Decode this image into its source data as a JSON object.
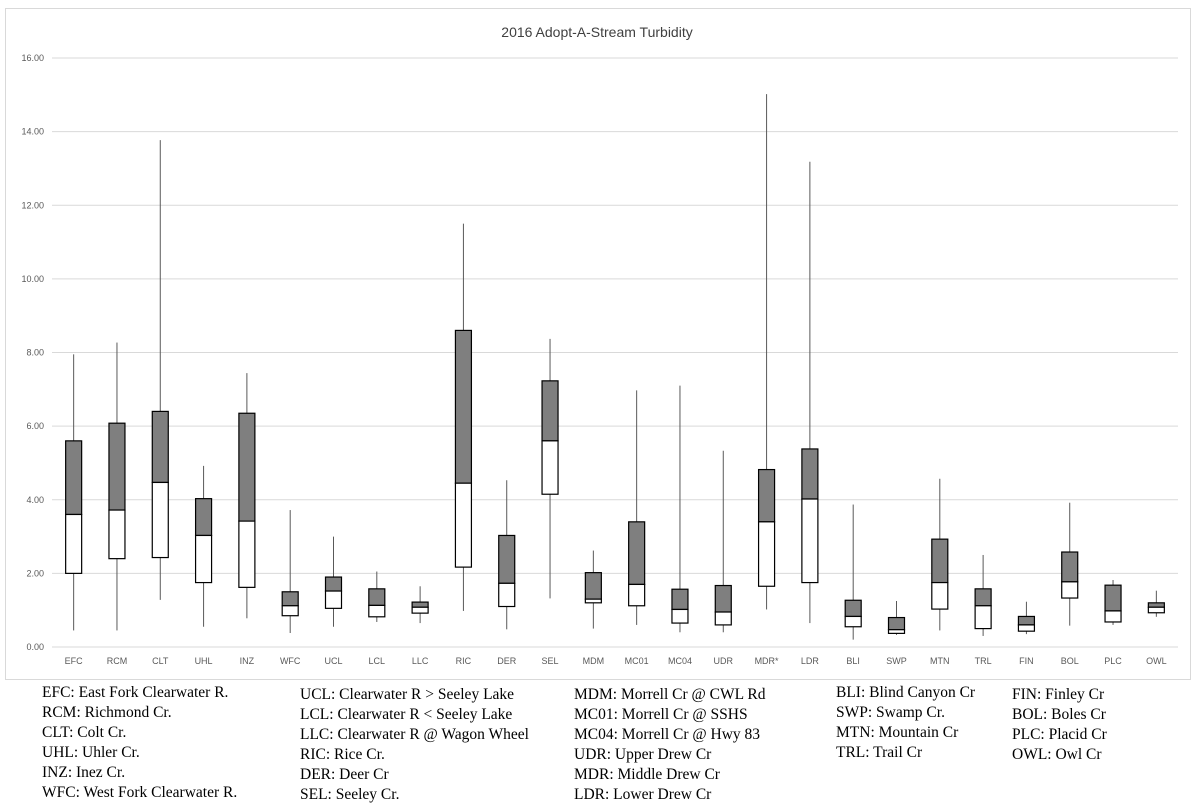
{
  "chart_data": {
    "type": "boxplot",
    "title": "2016 Adopt-A-Stream Turbidity",
    "xlabel": "",
    "ylabel": "",
    "ylim": [
      0,
      16
    ],
    "yticks": [
      "0.00",
      "2.00",
      "4.00",
      "6.00",
      "8.00",
      "10.00",
      "12.00",
      "14.00",
      "16.00"
    ],
    "grid": true,
    "colors": {
      "upper_box": "#7f7f7f",
      "lower_box": "#ffffff",
      "stroke": "#000000",
      "whisker": "#595959",
      "grid": "#d9d9d9"
    },
    "categories": [
      "EFC",
      "RCM",
      "CLT",
      "UHL",
      "INZ",
      "WFC",
      "UCL",
      "LCL",
      "LLC",
      "RIC",
      "DER",
      "SEL",
      "MDM",
      "MC01",
      "MC04",
      "UDR",
      "MDR*",
      "LDR",
      "BLI",
      "SWP",
      "MTN",
      "TRL",
      "FIN",
      "BOL",
      "PLC",
      "OWL"
    ],
    "boxes": [
      {
        "min": 0.45,
        "q1": 2.0,
        "median": 3.6,
        "q3": 5.6,
        "max": 7.95
      },
      {
        "min": 0.45,
        "q1": 2.4,
        "median": 3.72,
        "q3": 6.08,
        "max": 8.27
      },
      {
        "min": 1.28,
        "q1": 2.43,
        "median": 4.47,
        "q3": 6.4,
        "max": 13.77
      },
      {
        "min": 0.55,
        "q1": 1.75,
        "median": 3.03,
        "q3": 4.03,
        "max": 4.92
      },
      {
        "min": 0.78,
        "q1": 1.62,
        "median": 3.42,
        "q3": 6.35,
        "max": 7.44
      },
      {
        "min": 0.38,
        "q1": 0.85,
        "median": 1.12,
        "q3": 1.5,
        "max": 3.72
      },
      {
        "min": 0.55,
        "q1": 1.05,
        "median": 1.52,
        "q3": 1.9,
        "max": 3.0
      },
      {
        "min": 0.68,
        "q1": 0.82,
        "median": 1.13,
        "q3": 1.58,
        "max": 2.05
      },
      {
        "min": 0.65,
        "q1": 0.92,
        "median": 1.08,
        "q3": 1.22,
        "max": 1.65
      },
      {
        "min": 0.98,
        "q1": 2.17,
        "median": 4.45,
        "q3": 8.6,
        "max": 11.5
      },
      {
        "min": 0.48,
        "q1": 1.1,
        "median": 1.73,
        "q3": 3.03,
        "max": 4.53
      },
      {
        "min": 1.32,
        "q1": 4.15,
        "median": 5.6,
        "q3": 7.23,
        "max": 8.37
      },
      {
        "min": 0.5,
        "q1": 1.2,
        "median": 1.3,
        "q3": 2.02,
        "max": 2.62
      },
      {
        "min": 0.6,
        "q1": 1.12,
        "median": 1.7,
        "q3": 3.4,
        "max": 6.97
      },
      {
        "min": 0.4,
        "q1": 0.65,
        "median": 1.02,
        "q3": 1.57,
        "max": 7.1
      },
      {
        "min": 0.4,
        "q1": 0.6,
        "median": 0.95,
        "q3": 1.67,
        "max": 5.33
      },
      {
        "min": 1.02,
        "q1": 1.65,
        "median": 3.4,
        "q3": 4.82,
        "max": 15.02
      },
      {
        "min": 0.65,
        "q1": 1.75,
        "median": 4.02,
        "q3": 5.38,
        "max": 13.18
      },
      {
        "min": 0.2,
        "q1": 0.55,
        "median": 0.83,
        "q3": 1.27,
        "max": 3.87
      },
      {
        "min": 0.33,
        "q1": 0.37,
        "median": 0.47,
        "q3": 0.8,
        "max": 1.25
      },
      {
        "min": 0.45,
        "q1": 1.03,
        "median": 1.75,
        "q3": 2.93,
        "max": 4.57
      },
      {
        "min": 0.3,
        "q1": 0.5,
        "median": 1.12,
        "q3": 1.58,
        "max": 2.5
      },
      {
        "min": 0.35,
        "q1": 0.43,
        "median": 0.6,
        "q3": 0.83,
        "max": 1.23
      },
      {
        "min": 0.58,
        "q1": 1.33,
        "median": 1.77,
        "q3": 2.58,
        "max": 3.92
      },
      {
        "min": 0.6,
        "q1": 0.68,
        "median": 0.98,
        "q3": 1.68,
        "max": 1.82
      },
      {
        "min": 0.82,
        "q1": 0.93,
        "median": 1.08,
        "q3": 1.2,
        "max": 1.53
      }
    ]
  },
  "legend": {
    "col1": [
      "EFC: East Fork Clearwater R.",
      "RCM: Richmond Cr.",
      "CLT: Colt Cr.",
      "UHL: Uhler Cr.",
      "INZ: Inez Cr.",
      "WFC: West Fork Clearwater R."
    ],
    "col2": [
      "UCL: Clearwater R > Seeley Lake",
      "LCL: Clearwater R < Seeley Lake",
      "LLC: Clearwater R @ Wagon Wheel",
      "RIC: Rice Cr.",
      "DER: Deer Cr",
      "SEL: Seeley Cr."
    ],
    "col3": [
      "MDM: Morrell Cr @ CWL Rd",
      "MC01: Morrell Cr @ SSHS",
      "MC04: Morrell Cr @ Hwy 83",
      "UDR: Upper Drew Cr",
      "MDR: Middle Drew Cr",
      "LDR: Lower Drew Cr"
    ],
    "col4": [
      "BLI: Blind Canyon Cr",
      "SWP: Swamp Cr.",
      "MTN: Mountain Cr",
      "TRL: Trail Cr"
    ],
    "col5": [
      "FIN: Finley Cr",
      "BOL: Boles Cr",
      "PLC: Placid Cr",
      "OWL: Owl Cr"
    ]
  }
}
